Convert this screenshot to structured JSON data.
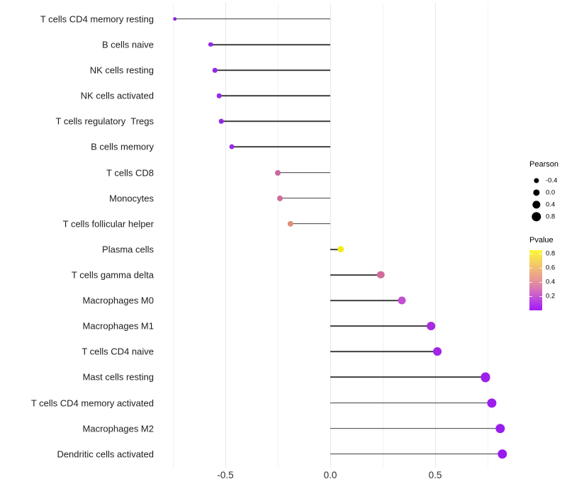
{
  "chart_data": {
    "type": "scatter",
    "subtype": "lollipop",
    "title": "",
    "xlabel": "",
    "ylabel": "",
    "xlim": [
      -0.82,
      0.88
    ],
    "x_ticks": [
      -0.5,
      0.0,
      0.5
    ],
    "x_tick_labels": [
      "-0.5",
      "0.0",
      "0.5"
    ],
    "x_minor_gridlines": [
      -0.75,
      -0.25,
      0.25,
      0.75
    ],
    "grid": "vertical-only",
    "stem_color": "#3f3f3f",
    "background": "#ffffff",
    "rows": [
      {
        "label": "T cells CD4 memory resting",
        "pearson": -0.74,
        "pvalue_approx": 0.02,
        "color": "#8827DF"
      },
      {
        "label": "B cells naive",
        "pearson": -0.57,
        "pvalue_approx": 0.04,
        "color": "#9329E7"
      },
      {
        "label": "NK cells resting",
        "pearson": -0.55,
        "pvalue_approx": 0.05,
        "color": "#9329E7"
      },
      {
        "label": "NK cells activated",
        "pearson": -0.53,
        "pvalue_approx": 0.05,
        "color": "#9429E7"
      },
      {
        "label": "T cells regulatory  Tregs",
        "pearson": -0.52,
        "pvalue_approx": 0.06,
        "color": "#9429E7"
      },
      {
        "label": "B cells memory",
        "pearson": -0.47,
        "pvalue_approx": 0.08,
        "color": "#992CE6"
      },
      {
        "label": "T cells CD8",
        "pearson": -0.25,
        "pvalue_approx": 0.32,
        "color": "#C9699E"
      },
      {
        "label": "Monocytes",
        "pearson": -0.24,
        "pvalue_approx": 0.34,
        "color": "#CE6C96"
      },
      {
        "label": "T cells follicular helper",
        "pearson": -0.19,
        "pvalue_approx": 0.47,
        "color": "#DD9178"
      },
      {
        "label": "Plasma cells",
        "pearson": 0.05,
        "pvalue_approx": 0.85,
        "color": "#F3ED1B"
      },
      {
        "label": "T cells gamma delta",
        "pearson": 0.24,
        "pvalue_approx": 0.31,
        "color": "#CF6A9C"
      },
      {
        "label": "Macrophages M0",
        "pearson": 0.34,
        "pvalue_approx": 0.16,
        "color": "#C24FD0"
      },
      {
        "label": "Macrophages M1",
        "pearson": 0.48,
        "pvalue_approx": 0.07,
        "color": "#A82CDD"
      },
      {
        "label": "T cells CD4 naive",
        "pearson": 0.51,
        "pvalue_approx": 0.05,
        "color": "#A125E6"
      },
      {
        "label": "Mast cells resting",
        "pearson": 0.74,
        "pvalue_approx": 0.03,
        "color": "#9D20EA"
      },
      {
        "label": "T cells CD4 memory activated",
        "pearson": 0.77,
        "pvalue_approx": 0.02,
        "color": "#9C1EEC"
      },
      {
        "label": "Macrophages M2",
        "pearson": 0.81,
        "pvalue_approx": 0.015,
        "color": "#9A1CEE"
      },
      {
        "label": "Dendritic cells activated",
        "pearson": 0.82,
        "pvalue_approx": 0.01,
        "color": "#991BEF"
      }
    ],
    "legend_size": {
      "title": "Pearson",
      "labels": [
        "-0.4",
        "0.0",
        "0.4",
        "0.8"
      ],
      "values": [
        -0.4,
        0.0,
        0.4,
        0.8
      ],
      "dot_color": "#000000"
    },
    "legend_color": {
      "title": "Pvalue",
      "tick_labels": [
        "0.8",
        "0.6",
        "0.4",
        "0.2"
      ],
      "tick_values": [
        0.8,
        0.6,
        0.4,
        0.2
      ],
      "range_top": 0.85,
      "range_bottom": 0.0,
      "gradient_stops": [
        "#FBF63B 0%",
        "#F6D55D 18%",
        "#EFAF7E 36%",
        "#E69797 50%",
        "#D877B4 64%",
        "#C454D6 78%",
        "#B032EA 90%",
        "#A318F6 100%"
      ]
    }
  }
}
